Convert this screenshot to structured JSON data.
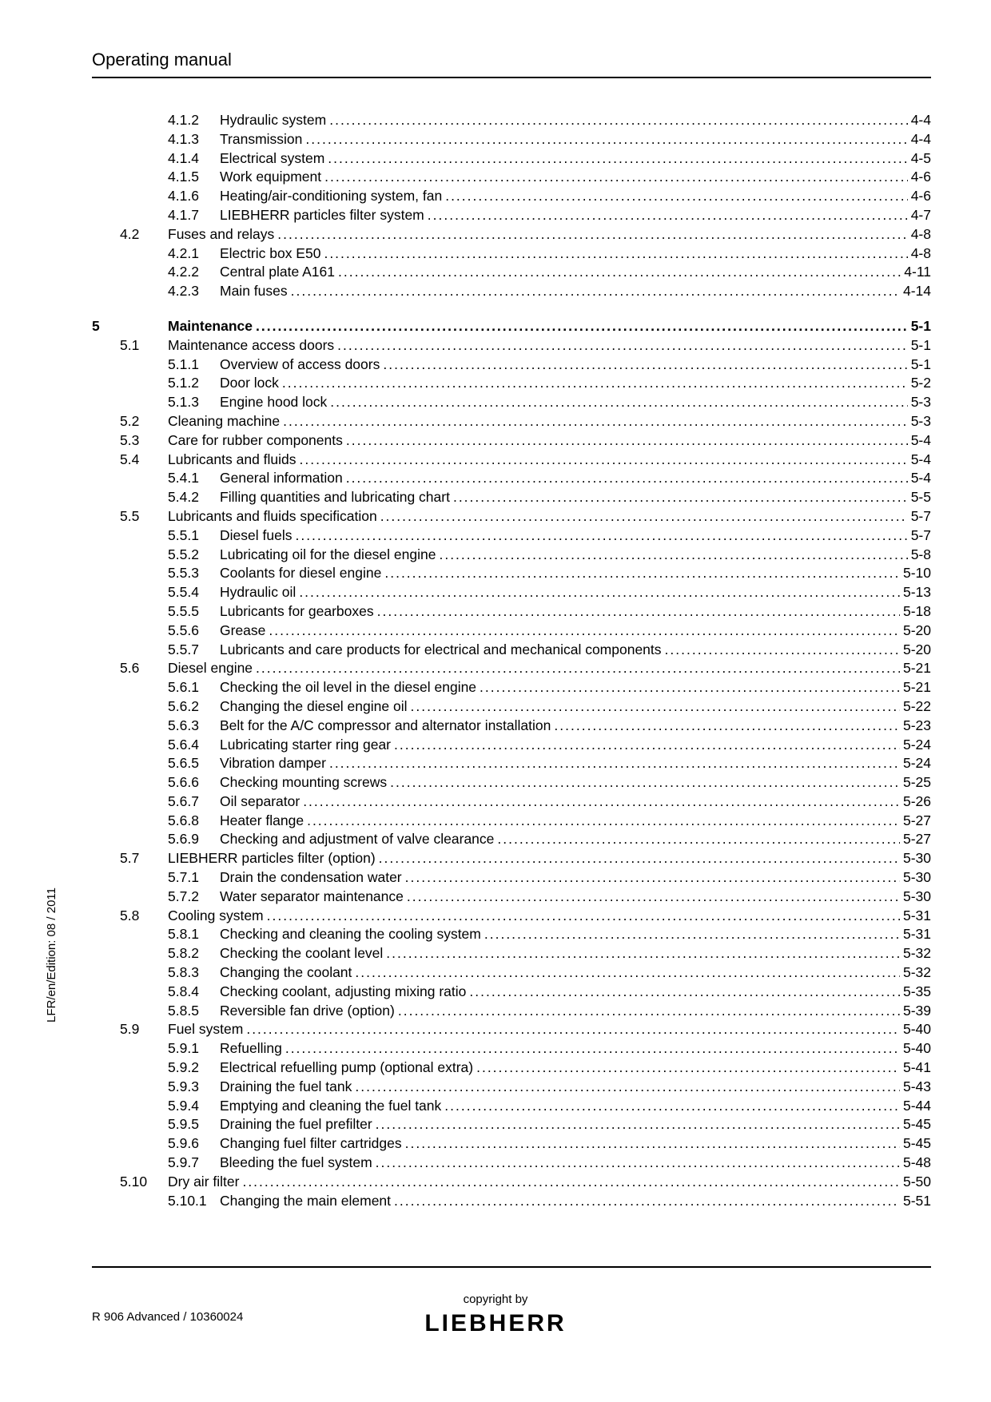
{
  "header": {
    "title": "Operating manual"
  },
  "sideText": "LFR/en/Edition: 08 / 2011",
  "footer": {
    "left": "R 906 Advanced / 10360024",
    "centerTop": "copyright by",
    "logo": "LIEBHERR"
  },
  "toc": [
    {
      "ch": "",
      "sec": "",
      "sub": "4.1.2",
      "title": "Hydraulic system",
      "page": "4-4",
      "bold": false,
      "level": 3
    },
    {
      "ch": "",
      "sec": "",
      "sub": "4.1.3",
      "title": "Transmission",
      "page": "4-4",
      "bold": false,
      "level": 3
    },
    {
      "ch": "",
      "sec": "",
      "sub": "4.1.4",
      "title": "Electrical system",
      "page": "4-5",
      "bold": false,
      "level": 3
    },
    {
      "ch": "",
      "sec": "",
      "sub": "4.1.5",
      "title": "Work equipment",
      "page": "4-6",
      "bold": false,
      "level": 3
    },
    {
      "ch": "",
      "sec": "",
      "sub": "4.1.6",
      "title": "Heating/air-conditioning system, fan",
      "page": "4-6",
      "bold": false,
      "level": 3
    },
    {
      "ch": "",
      "sec": "",
      "sub": "4.1.7",
      "title": "LIEBHERR particles filter system",
      "page": "4-7",
      "bold": false,
      "level": 3
    },
    {
      "ch": "",
      "sec": "4.2",
      "sub": "",
      "title": "Fuses and relays",
      "page": "4-8",
      "bold": false,
      "level": 2
    },
    {
      "ch": "",
      "sec": "",
      "sub": "4.2.1",
      "title": "Electric box E50",
      "page": "4-8",
      "bold": false,
      "level": 3
    },
    {
      "ch": "",
      "sec": "",
      "sub": "4.2.2",
      "title": "Central plate A161",
      "page": "4-11",
      "bold": false,
      "level": 3
    },
    {
      "ch": "",
      "sec": "",
      "sub": "4.2.3",
      "title": "Main fuses",
      "page": "4-14",
      "bold": false,
      "level": 3
    },
    {
      "gap": true
    },
    {
      "ch": "5",
      "sec": "",
      "sub": "",
      "title": "Maintenance",
      "page": "5-1",
      "bold": true,
      "level": 1
    },
    {
      "ch": "",
      "sec": "5.1",
      "sub": "",
      "title": "Maintenance access doors",
      "page": "5-1",
      "bold": false,
      "level": 2
    },
    {
      "ch": "",
      "sec": "",
      "sub": "5.1.1",
      "title": "Overview of access doors",
      "page": "5-1",
      "bold": false,
      "level": 3
    },
    {
      "ch": "",
      "sec": "",
      "sub": "5.1.2",
      "title": "Door lock",
      "page": "5-2",
      "bold": false,
      "level": 3
    },
    {
      "ch": "",
      "sec": "",
      "sub": "5.1.3",
      "title": "Engine hood lock",
      "page": "5-3",
      "bold": false,
      "level": 3
    },
    {
      "ch": "",
      "sec": "5.2",
      "sub": "",
      "title": "Cleaning machine",
      "page": "5-3",
      "bold": false,
      "level": 2
    },
    {
      "ch": "",
      "sec": "5.3",
      "sub": "",
      "title": "Care for rubber components",
      "page": "5-4",
      "bold": false,
      "level": 2
    },
    {
      "ch": "",
      "sec": "5.4",
      "sub": "",
      "title": "Lubricants and fluids",
      "page": "5-4",
      "bold": false,
      "level": 2
    },
    {
      "ch": "",
      "sec": "",
      "sub": "5.4.1",
      "title": "General information",
      "page": "5-4",
      "bold": false,
      "level": 3
    },
    {
      "ch": "",
      "sec": "",
      "sub": "5.4.2",
      "title": "Filling quantities and lubricating chart",
      "page": "5-5",
      "bold": false,
      "level": 3
    },
    {
      "ch": "",
      "sec": "5.5",
      "sub": "",
      "title": "Lubricants and fluids specification",
      "page": "5-7",
      "bold": false,
      "level": 2
    },
    {
      "ch": "",
      "sec": "",
      "sub": "5.5.1",
      "title": "Diesel fuels",
      "page": "5-7",
      "bold": false,
      "level": 3
    },
    {
      "ch": "",
      "sec": "",
      "sub": "5.5.2",
      "title": "Lubricating oil for the diesel engine",
      "page": "5-8",
      "bold": false,
      "level": 3
    },
    {
      "ch": "",
      "sec": "",
      "sub": "5.5.3",
      "title": "Coolants for diesel engine",
      "page": "5-10",
      "bold": false,
      "level": 3
    },
    {
      "ch": "",
      "sec": "",
      "sub": "5.5.4",
      "title": "Hydraulic oil",
      "page": "5-13",
      "bold": false,
      "level": 3
    },
    {
      "ch": "",
      "sec": "",
      "sub": "5.5.5",
      "title": "Lubricants for gearboxes",
      "page": "5-18",
      "bold": false,
      "level": 3
    },
    {
      "ch": "",
      "sec": "",
      "sub": "5.5.6",
      "title": "Grease",
      "page": "5-20",
      "bold": false,
      "level": 3
    },
    {
      "ch": "",
      "sec": "",
      "sub": "5.5.7",
      "title": "Lubricants and care products for electrical and mechanical components",
      "page": "5-20",
      "bold": false,
      "level": 3
    },
    {
      "ch": "",
      "sec": "5.6",
      "sub": "",
      "title": "Diesel engine",
      "page": "5-21",
      "bold": false,
      "level": 2
    },
    {
      "ch": "",
      "sec": "",
      "sub": "5.6.1",
      "title": "Checking the oil level in the diesel engine",
      "page": "5-21",
      "bold": false,
      "level": 3
    },
    {
      "ch": "",
      "sec": "",
      "sub": "5.6.2",
      "title": "Changing the diesel engine oil",
      "page": "5-22",
      "bold": false,
      "level": 3
    },
    {
      "ch": "",
      "sec": "",
      "sub": "5.6.3",
      "title": "Belt for the A/C compressor and alternator installation",
      "page": "5-23",
      "bold": false,
      "level": 3
    },
    {
      "ch": "",
      "sec": "",
      "sub": "5.6.4",
      "title": "Lubricating starter ring gear",
      "page": "5-24",
      "bold": false,
      "level": 3
    },
    {
      "ch": "",
      "sec": "",
      "sub": "5.6.5",
      "title": "Vibration damper",
      "page": "5-24",
      "bold": false,
      "level": 3
    },
    {
      "ch": "",
      "sec": "",
      "sub": "5.6.6",
      "title": "Checking mounting screws",
      "page": "5-25",
      "bold": false,
      "level": 3
    },
    {
      "ch": "",
      "sec": "",
      "sub": "5.6.7",
      "title": "Oil separator",
      "page": "5-26",
      "bold": false,
      "level": 3
    },
    {
      "ch": "",
      "sec": "",
      "sub": "5.6.8",
      "title": "Heater flange",
      "page": "5-27",
      "bold": false,
      "level": 3
    },
    {
      "ch": "",
      "sec": "",
      "sub": "5.6.9",
      "title": "Checking and adjustment of valve clearance",
      "page": "5-27",
      "bold": false,
      "level": 3
    },
    {
      "ch": "",
      "sec": "5.7",
      "sub": "",
      "title": "LIEBHERR particles filter (option)",
      "page": "5-30",
      "bold": false,
      "level": 2
    },
    {
      "ch": "",
      "sec": "",
      "sub": "5.7.1",
      "title": "Drain the condensation water",
      "page": "5-30",
      "bold": false,
      "level": 3
    },
    {
      "ch": "",
      "sec": "",
      "sub": "5.7.2",
      "title": "Water separator maintenance",
      "page": "5-30",
      "bold": false,
      "level": 3
    },
    {
      "ch": "",
      "sec": "5.8",
      "sub": "",
      "title": "Cooling system",
      "page": "5-31",
      "bold": false,
      "level": 2
    },
    {
      "ch": "",
      "sec": "",
      "sub": "5.8.1",
      "title": "Checking and cleaning the cooling system",
      "page": "5-31",
      "bold": false,
      "level": 3
    },
    {
      "ch": "",
      "sec": "",
      "sub": "5.8.2",
      "title": "Checking the coolant level",
      "page": "5-32",
      "bold": false,
      "level": 3
    },
    {
      "ch": "",
      "sec": "",
      "sub": "5.8.3",
      "title": "Changing the coolant",
      "page": "5-32",
      "bold": false,
      "level": 3
    },
    {
      "ch": "",
      "sec": "",
      "sub": "5.8.4",
      "title": "Checking coolant, adjusting mixing ratio",
      "page": "5-35",
      "bold": false,
      "level": 3
    },
    {
      "ch": "",
      "sec": "",
      "sub": "5.8.5",
      "title": "Reversible fan drive (option)",
      "page": "5-39",
      "bold": false,
      "level": 3
    },
    {
      "ch": "",
      "sec": "5.9",
      "sub": "",
      "title": "Fuel system",
      "page": "5-40",
      "bold": false,
      "level": 2
    },
    {
      "ch": "",
      "sec": "",
      "sub": "5.9.1",
      "title": "Refuelling",
      "page": "5-40",
      "bold": false,
      "level": 3
    },
    {
      "ch": "",
      "sec": "",
      "sub": "5.9.2",
      "title": "Electrical refuelling pump (optional extra)",
      "page": "5-41",
      "bold": false,
      "level": 3
    },
    {
      "ch": "",
      "sec": "",
      "sub": "5.9.3",
      "title": "Draining the fuel tank",
      "page": "5-43",
      "bold": false,
      "level": 3
    },
    {
      "ch": "",
      "sec": "",
      "sub": "5.9.4",
      "title": "Emptying and cleaning the fuel tank",
      "page": "5-44",
      "bold": false,
      "level": 3
    },
    {
      "ch": "",
      "sec": "",
      "sub": "5.9.5",
      "title": "Draining the fuel prefilter",
      "page": "5-45",
      "bold": false,
      "level": 3
    },
    {
      "ch": "",
      "sec": "",
      "sub": "5.9.6",
      "title": "Changing fuel filter cartridges",
      "page": "5-45",
      "bold": false,
      "level": 3
    },
    {
      "ch": "",
      "sec": "",
      "sub": "5.9.7",
      "title": "Bleeding the fuel system",
      "page": "5-48",
      "bold": false,
      "level": 3
    },
    {
      "ch": "",
      "sec": "5.10",
      "sub": "",
      "title": "Dry air filter",
      "page": "5-50",
      "bold": false,
      "level": 2
    },
    {
      "ch": "",
      "sec": "",
      "sub": "5.10.1",
      "title": "Changing the main element",
      "page": "5-51",
      "bold": false,
      "level": 3
    }
  ]
}
